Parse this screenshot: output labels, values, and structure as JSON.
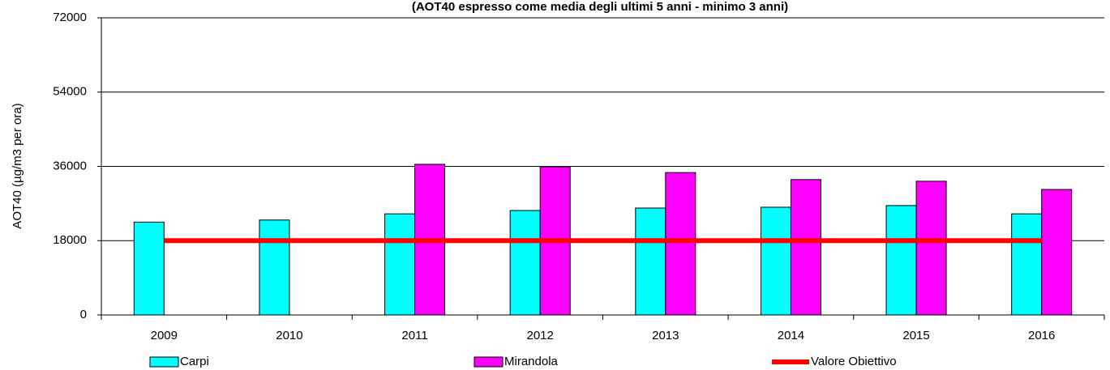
{
  "chart_data": {
    "type": "bar",
    "title": "(AOT40  espresso come media degli ultimi 5 anni  - minimo 3 anni)",
    "y_axis_label": "AOT40 (µg/m3 per ora)",
    "categories": [
      "2009",
      "2010",
      "2011",
      "2012",
      "2013",
      "2014",
      "2015",
      "2016"
    ],
    "series": [
      {
        "name": "Carpi",
        "color": "#00ffff",
        "values": [
          22500,
          23000,
          24500,
          25300,
          25900,
          26100,
          26500,
          24500
        ]
      },
      {
        "name": "Mirandola",
        "color": "#ff00ff",
        "values": [
          null,
          null,
          36500,
          35900,
          34500,
          32800,
          32400,
          30400
        ]
      },
      {
        "name": "Valore Obiettivo",
        "color": "#ff0000",
        "type": "line",
        "values": [
          18000,
          18000,
          18000,
          18000,
          18000,
          18000,
          18000,
          18000
        ]
      }
    ],
    "ylim": [
      0,
      72000
    ],
    "yticks": [
      0,
      18000,
      36000,
      54000,
      72000
    ],
    "grid": true
  }
}
